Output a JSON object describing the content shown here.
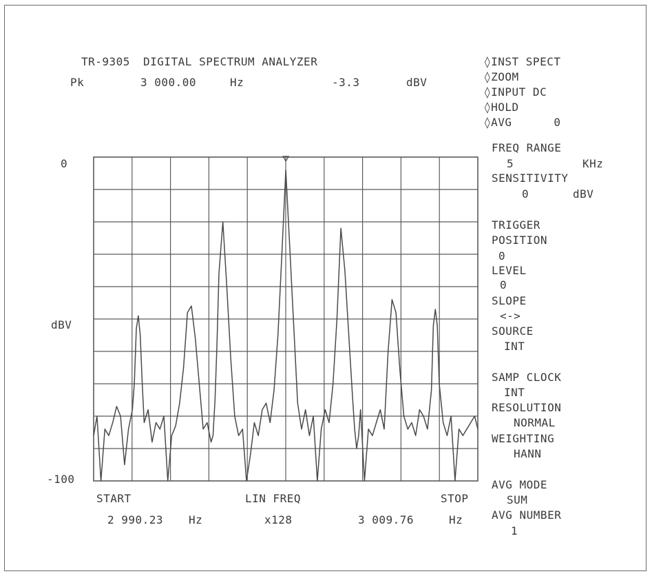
{
  "header": {
    "model": "TR-9305",
    "title": "DIGITAL SPECTRUM ANALYZER",
    "marker_label": "Pk",
    "marker_freq": "3 000.00",
    "marker_freq_unit": "Hz",
    "marker_level": "-3.3",
    "marker_level_unit": "dBV"
  },
  "menu": [
    "◊INST SPECT",
    "◊ZOOM",
    "◊INPUT DC",
    "◊HOLD",
    "◊AVG      0"
  ],
  "settings": {
    "freq_range_label": "FREQ RANGE",
    "freq_range_value": "5",
    "freq_range_unit": "KHz",
    "sensitivity_label": "SENSITIVITY",
    "sensitivity_value": "0",
    "sensitivity_unit": "dBV",
    "trigger_label": "TRIGGER",
    "position_label": "POSITION",
    "position_value": "0",
    "level_label": "LEVEL",
    "level_value": "0",
    "slope_label": "SLOPE",
    "slope_value": "<->",
    "source_label": "SOURCE",
    "source_value": "INT",
    "samp_clock_label": "SAMP CLOCK",
    "samp_clock_value": "INT",
    "resolution_label": "RESOLUTION",
    "resolution_value": "NORMAL",
    "weighting_label": "WEIGHTING",
    "weighting_value": "HANN",
    "avg_mode_label": "AVG MODE",
    "avg_mode_value": "SUM",
    "avg_number_label": "AVG NUMBER",
    "avg_number_value": "1"
  },
  "footer": {
    "start_label": "START",
    "start_freq": "2 990.23",
    "start_unit": "Hz",
    "scale_label": "LIN FREQ",
    "scale_factor": "x128",
    "stop_label": "STOP",
    "stop_freq": "3 009.76",
    "stop_unit": "Hz"
  },
  "chart_data": {
    "type": "line",
    "xlabel": "",
    "ylabel": "dBV",
    "ytick_top": "0",
    "ytick_bottom": "-100",
    "xlim": [
      2990.23,
      3009.76
    ],
    "ylim": [
      -100,
      0
    ],
    "grid": true,
    "grid_divisions": {
      "x": 10,
      "y": 10
    },
    "colors": {
      "trace": "#4a4a4a",
      "grid": "#5a5a5a",
      "text": "#3a3a3a"
    },
    "series": [
      {
        "x": [
          2990.23,
          2990.4,
          2990.6,
          2990.8,
          2991.0,
          2991.2,
          2991.4,
          2991.6,
          2991.8,
          2992.0,
          2992.2,
          2992.3,
          2992.4,
          2992.5,
          2992.6,
          2992.7,
          2992.8,
          2993.0,
          2993.2,
          2993.4,
          2993.6,
          2993.8,
          2994.0,
          2994.2,
          2994.4,
          2994.6,
          2994.8,
          2995.0,
          2995.2,
          2995.4,
          2995.6,
          2995.8,
          2996.0,
          2996.2,
          2996.3,
          2996.4,
          2996.5,
          2996.6,
          2996.8,
          2997.0,
          2997.2,
          2997.4,
          2997.6,
          2997.8,
          2998.0,
          2998.2,
          2998.4,
          2998.6,
          2998.8,
          2999.0,
          2999.2,
          2999.4,
          2999.6,
          2999.8,
          3000.0,
          3000.2,
          3000.4,
          3000.6,
          3000.8,
          3001.0,
          3001.2,
          3001.4,
          3001.6,
          3001.8,
          3002.0,
          3002.2,
          3002.4,
          3002.6,
          3002.8,
          3003.0,
          3003.2,
          3003.4,
          3003.5,
          3003.6,
          3003.7,
          3003.8,
          3004.0,
          3004.2,
          3004.4,
          3004.6,
          3004.8,
          3005.0,
          3005.2,
          3005.4,
          3005.6,
          3005.8,
          3006.0,
          3006.2,
          3006.4,
          3006.6,
          3006.8,
          3007.0,
          3007.2,
          3007.4,
          3007.5,
          3007.6,
          3007.7,
          3007.8,
          3008.0,
          3008.2,
          3008.4,
          3008.6,
          3008.8,
          3009.0,
          3009.2,
          3009.4,
          3009.6,
          3009.76
        ],
        "y": [
          -86,
          -80,
          -100,
          -84,
          -86,
          -82,
          -77,
          -80,
          -95,
          -84,
          -78,
          -70,
          -53,
          -49,
          -55,
          -70,
          -82,
          -78,
          -88,
          -82,
          -84,
          -80,
          -100,
          -86,
          -83,
          -76,
          -65,
          -48,
          -46,
          -56,
          -70,
          -84,
          -82,
          -88,
          -86,
          -75,
          -58,
          -36,
          -20,
          -40,
          -62,
          -80,
          -86,
          -84,
          -100,
          -92,
          -82,
          -86,
          -78,
          -76,
          -82,
          -72,
          -55,
          -30,
          -4,
          -28,
          -52,
          -76,
          -84,
          -78,
          -86,
          -80,
          -100,
          -84,
          -78,
          -82,
          -70,
          -50,
          -22,
          -35,
          -55,
          -75,
          -84,
          -90,
          -86,
          -78,
          -100,
          -84,
          -86,
          -82,
          -78,
          -84,
          -60,
          -44,
          -48,
          -66,
          -80,
          -84,
          -82,
          -86,
          -78,
          -80,
          -84,
          -72,
          -52,
          -47,
          -52,
          -70,
          -82,
          -86,
          -80,
          -100,
          -84,
          -86,
          -84,
          -82,
          -80,
          -84
        ]
      }
    ]
  }
}
